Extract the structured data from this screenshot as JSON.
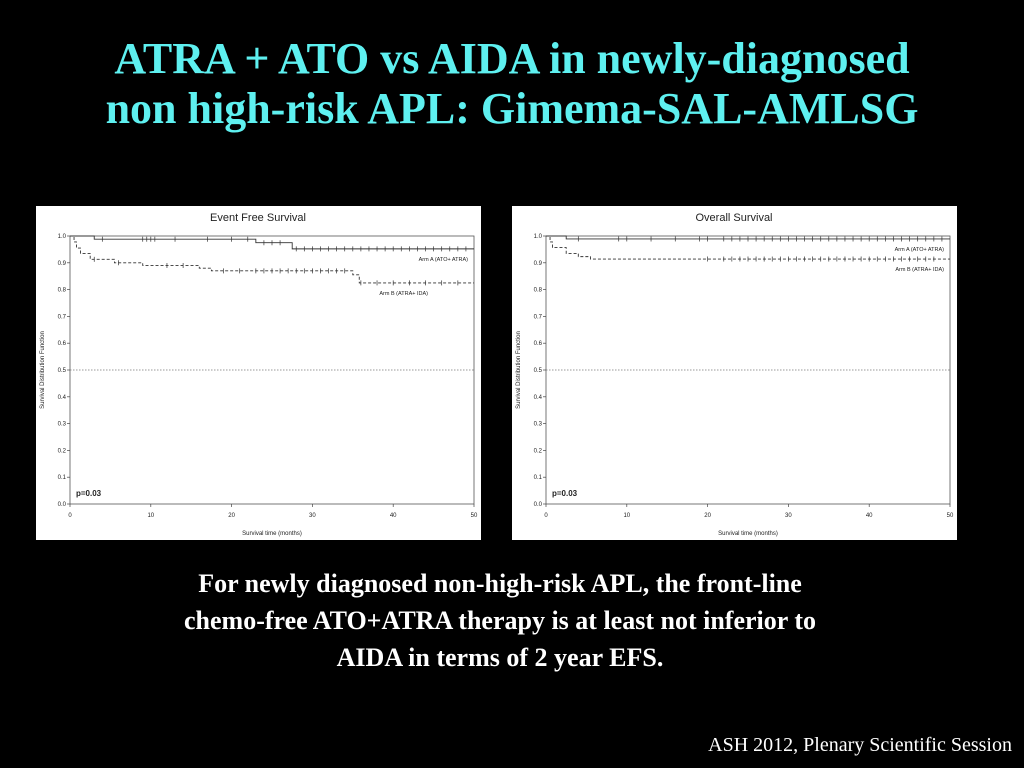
{
  "slide": {
    "title_lines": [
      "ATRA + ATO vs AIDA in newly-diagnosed",
      "non high-risk APL: Gimema-SAL-AMLSG"
    ],
    "conclusion_lines": [
      "For newly diagnosed non-high-risk APL, the front-line",
      "chemo-free ATO+ATRA therapy is at least not inferior to",
      "AIDA in terms of 2 year EFS."
    ],
    "source": "ASH 2012, Plenary Scientific Session",
    "title_color": "#5ef0f0"
  },
  "chart_data": [
    {
      "type": "line",
      "title": "Event  Free  Survival",
      "xlabel": "Survival  time  (months)",
      "ylabel": "Survival  Distribution  Function",
      "xlim": [
        0,
        50
      ],
      "ylim": [
        0,
        1
      ],
      "x_ticks": [
        0,
        10,
        20,
        30,
        40,
        50
      ],
      "y_ticks": [
        0.0,
        0.1,
        0.2,
        0.3,
        0.4,
        0.5,
        0.6,
        0.7,
        0.8,
        0.9,
        1.0
      ],
      "y_tick_labels": [
        "0.0",
        "0.1",
        "0.2",
        "0.3",
        "0.4",
        "0.5",
        "0.6",
        "0.7",
        "0.8",
        "0.9",
        "1.0"
      ],
      "reference_line_y": 0.5,
      "annotation": "p=0.03",
      "series": [
        {
          "name": "Arm  A  (ATO+ ATRA)",
          "style": "solid",
          "step_points": [
            [
              0,
              1.0
            ],
            [
              3,
              0.988
            ],
            [
              23,
              0.975
            ],
            [
              27.5,
              0.952
            ],
            [
              50,
              0.952
            ]
          ],
          "censored_x": [
            4,
            9,
            9.5,
            10,
            10.5,
            13,
            17,
            20,
            22,
            24,
            25,
            26,
            28,
            29,
            30,
            31,
            32,
            33,
            34,
            35,
            36,
            37,
            38,
            39,
            40,
            41,
            42,
            43,
            44,
            45,
            46,
            47,
            48,
            49
          ]
        },
        {
          "name": "Arm  B  (ATRA+ IDA)",
          "style": "dashed",
          "step_points": [
            [
              0,
              1.0
            ],
            [
              0.5,
              0.978
            ],
            [
              0.8,
              0.955
            ],
            [
              1.3,
              0.935
            ],
            [
              2.5,
              0.913
            ],
            [
              5.5,
              0.9
            ],
            [
              9,
              0.89
            ],
            [
              16,
              0.88
            ],
            [
              17.5,
              0.87
            ],
            [
              35,
              0.855
            ],
            [
              35.8,
              0.825
            ],
            [
              50,
              0.825
            ]
          ],
          "censored_x": [
            3,
            6,
            12,
            14,
            19,
            21,
            23,
            24,
            25,
            26,
            27,
            28,
            29,
            30,
            31,
            32,
            33,
            34,
            36,
            38,
            40,
            42,
            44,
            46,
            48
          ]
        }
      ]
    },
    {
      "type": "line",
      "title": "Overall  Survival",
      "xlabel": "Survival  time  (months)",
      "ylabel": "Survival  Distribution  Function",
      "xlim": [
        0,
        50
      ],
      "ylim": [
        0,
        1
      ],
      "x_ticks": [
        0,
        10,
        20,
        30,
        40,
        50
      ],
      "y_ticks": [
        0.0,
        0.1,
        0.2,
        0.3,
        0.4,
        0.5,
        0.6,
        0.7,
        0.8,
        0.9,
        1.0
      ],
      "y_tick_labels": [
        "0.0",
        "0.1",
        "0.2",
        "0.3",
        "0.4",
        "0.5",
        "0.6",
        "0.7",
        "0.8",
        "0.9",
        "1.0"
      ],
      "reference_line_y": 0.5,
      "annotation": "p=0.03",
      "series": [
        {
          "name": "Arm  A  (ATO+ ATRA)",
          "style": "solid",
          "step_points": [
            [
              0,
              1.0
            ],
            [
              2.5,
              0.989
            ],
            [
              50,
              0.989
            ]
          ],
          "censored_x": [
            4,
            9,
            10,
            13,
            16,
            19,
            20,
            22,
            23,
            24,
            25,
            26,
            27,
            28,
            29,
            30,
            31,
            32,
            33,
            34,
            35,
            36,
            37,
            38,
            39,
            40,
            41,
            42,
            43,
            44,
            45,
            46,
            47,
            48,
            49
          ]
        },
        {
          "name": "Arm  B  (ATRA+ IDA)",
          "style": "dashed",
          "step_points": [
            [
              0,
              1.0
            ],
            [
              0.5,
              0.978
            ],
            [
              0.8,
              0.957
            ],
            [
              2.5,
              0.935
            ],
            [
              4,
              0.923
            ],
            [
              5.5,
              0.914
            ],
            [
              50,
              0.914
            ]
          ],
          "censored_x": [
            20,
            22,
            23,
            24,
            25,
            26,
            27,
            28,
            29,
            30,
            31,
            32,
            33,
            34,
            35,
            36,
            37,
            38,
            39,
            40,
            41,
            42,
            43,
            44,
            45,
            46,
            47,
            48
          ]
        }
      ]
    }
  ]
}
